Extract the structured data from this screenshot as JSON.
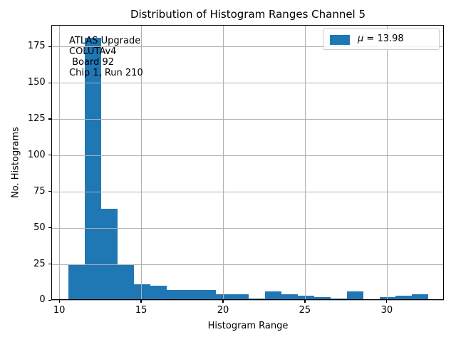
{
  "figure": {
    "title": "Distribution of Histogram Ranges Channel 5",
    "xlabel": "Histogram Range",
    "ylabel": "No. Histograms"
  },
  "annotation": {
    "lines": [
      "ATLAS Upgrade",
      "COLUTAv4",
      " Board 92",
      "Chip 1, Run 210"
    ]
  },
  "legend": {
    "label": "μ = 13.98",
    "mu": "μ",
    "rest": " = 13.98",
    "swatch_color": "#1f77b4"
  },
  "chart_data": {
    "type": "bar",
    "subtype": "histogram",
    "title": "Distribution of Histogram Ranges Channel 5",
    "xlabel": "Histogram Range",
    "ylabel": "No. Histograms",
    "bin_edges": [
      10.55,
      11.55,
      12.55,
      13.55,
      14.55,
      15.55,
      16.55,
      17.55,
      18.55,
      19.55,
      20.55,
      21.55,
      22.55,
      23.55,
      24.55,
      25.55,
      26.55,
      27.55,
      28.55,
      29.55,
      30.55,
      31.55,
      32.55
    ],
    "counts": [
      25,
      181,
      63,
      25,
      11,
      10,
      7,
      7,
      7,
      4,
      4,
      1,
      6,
      4,
      3,
      2,
      1,
      6,
      0,
      2,
      3,
      4
    ],
    "x_ticks": [
      10,
      15,
      20,
      25,
      30
    ],
    "y_ticks": [
      0,
      25,
      50,
      75,
      100,
      125,
      150,
      175
    ],
    "xlim": [
      9.5,
      33.5
    ],
    "ylim": [
      0,
      190
    ],
    "grid": true,
    "grid_above_bars": true,
    "bar_color": "#1f77b4",
    "grid_color": "#b0b0b0",
    "legend_label": "μ = 13.98",
    "legend_loc": "upper right",
    "mean": 13.98
  }
}
